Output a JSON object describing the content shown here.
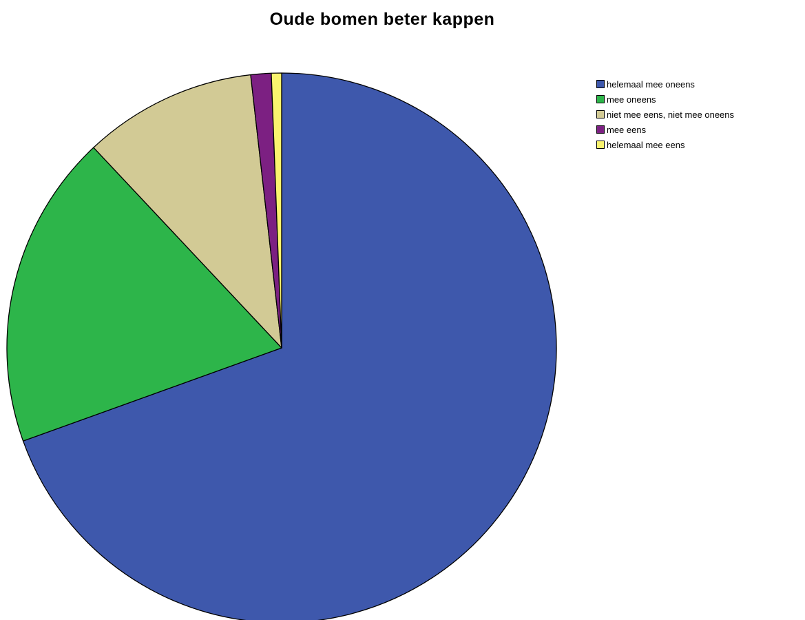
{
  "chart_data": {
    "type": "pie",
    "title": "Oude bomen beter kappen",
    "start_angle_deg": 0,
    "direction": "clockwise",
    "legend_position": "top-right",
    "slices": [
      {
        "label": "helemaal mee oneens",
        "value": 69.5,
        "color": "#3E58AC"
      },
      {
        "label": "mee oneens",
        "value": 18.5,
        "color": "#2DB54A"
      },
      {
        "label": "niet mee eens, niet mee oneens",
        "value": 10.2,
        "color": "#D2CA95"
      },
      {
        "label": "mee eens",
        "value": 1.2,
        "color": "#7C2082"
      },
      {
        "label": "helemaal mee eens",
        "value": 0.6,
        "color": "#FAF36E"
      }
    ]
  }
}
